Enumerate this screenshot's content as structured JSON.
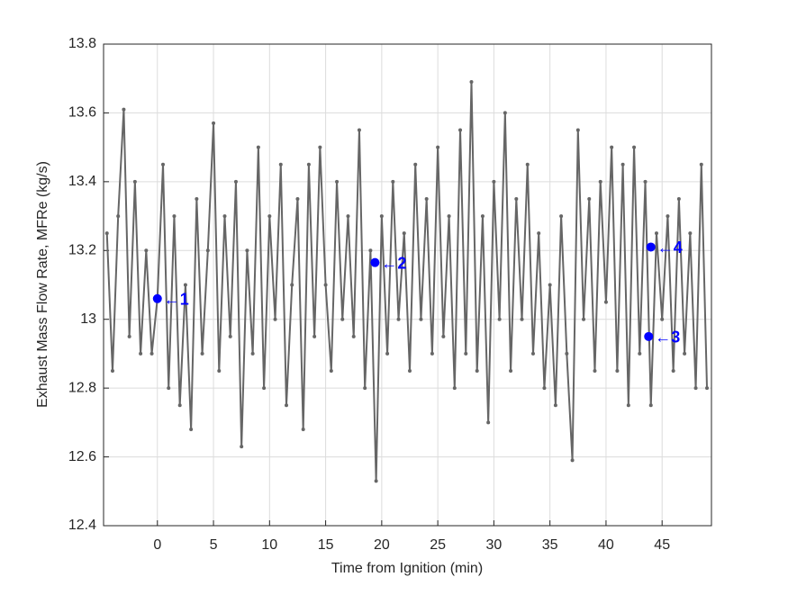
{
  "chart_data": {
    "type": "line",
    "xlabel": "Time from Ignition (min)",
    "ylabel": "Exhaust Mass Flow Rate, MFRe (kg/s)",
    "x": [
      -4.5,
      -4,
      -3.5,
      -3,
      -2.5,
      -2,
      -1.5,
      -1,
      -0.5,
      0,
      0.5,
      1,
      1.5,
      2,
      2.5,
      3,
      3.5,
      4,
      4.5,
      5,
      5.5,
      6,
      6.5,
      7,
      7.5,
      8,
      8.5,
      9,
      9.5,
      10,
      10.5,
      11,
      11.5,
      12,
      12.5,
      13,
      13.5,
      14,
      14.5,
      15,
      15.5,
      16,
      16.5,
      17,
      17.5,
      18,
      18.5,
      19,
      19.5,
      20,
      20.5,
      21,
      21.5,
      22,
      22.5,
      23,
      23.5,
      24,
      24.5,
      25,
      25.5,
      26,
      26.5,
      27,
      27.5,
      28,
      28.5,
      29,
      29.5,
      30,
      30.5,
      31,
      31.5,
      32,
      32.5,
      33,
      33.5,
      34,
      34.5,
      35,
      35.5,
      36,
      36.5,
      37,
      37.5,
      38,
      38.5,
      39,
      39.5,
      40,
      40.5,
      41,
      41.5,
      42,
      42.5,
      43,
      43.5,
      44,
      44.5,
      45,
      45.5,
      46,
      46.5,
      47,
      47.5,
      48,
      48.5,
      49
    ],
    "series": [
      {
        "color": "#666666",
        "values": [
          13.25,
          12.85,
          13.3,
          13.61,
          12.95,
          13.4,
          12.9,
          13.2,
          12.9,
          13.06,
          13.45,
          12.8,
          13.3,
          12.75,
          13.1,
          12.68,
          13.35,
          12.9,
          13.2,
          13.57,
          12.85,
          13.3,
          12.95,
          13.4,
          12.63,
          13.2,
          12.9,
          13.5,
          12.8,
          13.3,
          13.0,
          13.45,
          12.75,
          13.1,
          13.35,
          12.68,
          13.45,
          12.95,
          13.5,
          13.1,
          12.85,
          13.4,
          13.0,
          13.3,
          12.95,
          13.55,
          12.8,
          13.2,
          12.53,
          13.3,
          12.9,
          13.4,
          13.0,
          13.25,
          12.85,
          13.45,
          13.0,
          13.35,
          12.9,
          13.5,
          12.95,
          13.3,
          12.8,
          13.55,
          12.9,
          13.69,
          12.85,
          13.3,
          12.7,
          13.4,
          13.0,
          13.6,
          12.85,
          13.35,
          13.0,
          13.45,
          12.9,
          13.25,
          12.8,
          13.1,
          12.75,
          13.3,
          12.9,
          12.59,
          13.55,
          13.0,
          13.35,
          12.85,
          13.4,
          13.05,
          13.5,
          12.85,
          13.45,
          12.75,
          13.5,
          12.9,
          13.4,
          12.75,
          13.25,
          13.0,
          13.3,
          12.85,
          13.35,
          12.9,
          13.25,
          12.8,
          13.45,
          12.8
        ]
      }
    ],
    "annotations": [
      {
        "x": 0,
        "y": 13.06,
        "label": "←1"
      },
      {
        "x": 19.4,
        "y": 13.165,
        "label": "←2"
      },
      {
        "x": 43.8,
        "y": 12.95,
        "label": "←3"
      },
      {
        "x": 44,
        "y": 13.21,
        "label": "←4"
      }
    ],
    "annotation_color": "#0000ff",
    "xlim": [
      -4.8,
      49.4
    ],
    "xticks": [
      0,
      5,
      10,
      15,
      20,
      25,
      30,
      35,
      40,
      45
    ],
    "ylim": [
      12.4,
      13.8
    ],
    "yticks": [
      12.4,
      12.6,
      12.8,
      13,
      13.2,
      13.4,
      13.6,
      13.8
    ],
    "grid": true
  }
}
